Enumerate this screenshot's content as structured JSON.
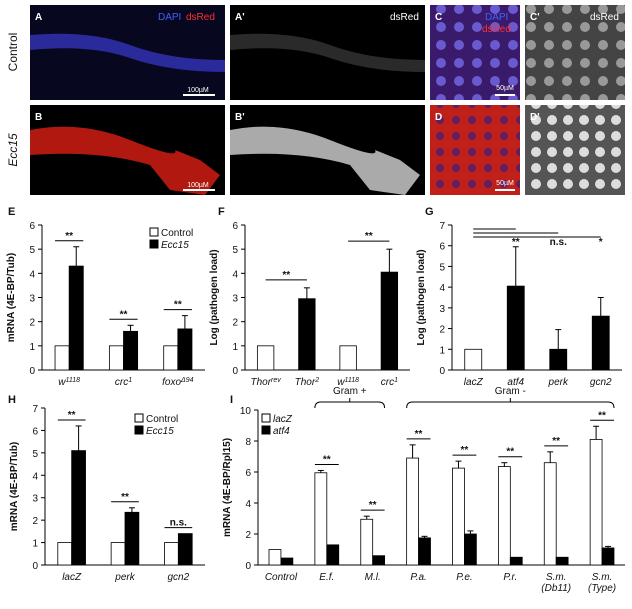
{
  "figure": {
    "row_labels": [
      "Control",
      "Ecc15"
    ],
    "images": [
      {
        "label": "A",
        "channels": [
          "DAPI",
          "dsRed"
        ],
        "scale": "100µM"
      },
      {
        "label": "A'",
        "channels": [
          "dsRed"
        ]
      },
      {
        "label": "C",
        "channels": [
          "DAPI",
          "dsRed"
        ]
      },
      {
        "label": "C'",
        "channels": [
          "dsRed"
        ]
      },
      {
        "label": "B",
        "scale": "100µM"
      },
      {
        "label": "B'"
      },
      {
        "label": "D",
        "scale": "50µM"
      },
      {
        "label": "D'"
      }
    ],
    "scale_c": "50µM"
  },
  "chart_data": [
    {
      "type": "bar",
      "panel_label": "E",
      "ylabel": "mRNA (4E-BP/Tub)",
      "ylim": [
        0,
        6
      ],
      "yticks": [
        0,
        1,
        2,
        3,
        4,
        5,
        6
      ],
      "categories": [
        "w",
        "crc",
        "foxo"
      ],
      "category_superscripts": [
        "1118",
        "1",
        "Δ94"
      ],
      "series": [
        {
          "name": "Control",
          "color": "#ffffff",
          "values": [
            1,
            1,
            1
          ],
          "errors": [
            0,
            0,
            0
          ]
        },
        {
          "name": "Ecc15",
          "color": "#000000",
          "values": [
            4.3,
            1.6,
            1.7
          ],
          "errors": [
            0.8,
            0.25,
            0.55
          ]
        }
      ],
      "significance": [
        "**",
        "**",
        "**"
      ]
    },
    {
      "type": "bar",
      "panel_label": "F",
      "ylabel": "Log (pathogen load)",
      "ylim": [
        0,
        6
      ],
      "yticks": [
        0,
        1,
        2,
        3,
        4,
        5,
        6
      ],
      "categories": [
        "Thor",
        "Thor",
        "w",
        "crc"
      ],
      "category_superscripts": [
        "rev",
        "2",
        "1118",
        "1"
      ],
      "series": [
        {
          "colors": [
            "#ffffff",
            "#000000",
            "#ffffff",
            "#000000"
          ],
          "values": [
            1,
            2.95,
            1,
            4.05
          ],
          "errors": [
            0,
            0.45,
            0,
            0.95
          ]
        }
      ],
      "brackets": [
        {
          "from": 0,
          "to": 1,
          "label": "**"
        },
        {
          "from": 2,
          "to": 3,
          "label": "**"
        }
      ]
    },
    {
      "type": "bar",
      "panel_label": "G",
      "ylabel": "Log (pathogen load)",
      "ylim": [
        0,
        7
      ],
      "yticks": [
        0,
        1,
        2,
        3,
        4,
        5,
        6,
        7
      ],
      "categories": [
        "lacZ",
        "atf4",
        "perk",
        "gcn2"
      ],
      "series": [
        {
          "colors": [
            "#ffffff",
            "#000000",
            "#000000",
            "#000000"
          ],
          "values": [
            1,
            4.05,
            1,
            2.6
          ],
          "errors": [
            0,
            1.9,
            0.95,
            0.9
          ]
        }
      ],
      "brackets": [
        {
          "from": 0,
          "to": 1,
          "label": "**"
        },
        {
          "from": 0,
          "to": 2,
          "label": "n.s."
        },
        {
          "from": 0,
          "to": 3,
          "label": "*"
        }
      ]
    },
    {
      "type": "bar",
      "panel_label": "H",
      "ylabel": "mRNA (4E-BP/Tub)",
      "ylim": [
        0,
        7
      ],
      "yticks": [
        0,
        1,
        2,
        3,
        4,
        5,
        6,
        7
      ],
      "categories": [
        "lacZ",
        "perk",
        "gcn2"
      ],
      "series": [
        {
          "name": "Control",
          "color": "#ffffff",
          "values": [
            1,
            1,
            1
          ],
          "errors": [
            0,
            0,
            0
          ]
        },
        {
          "name": "Ecc15",
          "color": "#000000",
          "values": [
            5.1,
            2.35,
            1.4
          ],
          "errors": [
            1.1,
            0.2,
            0
          ]
        }
      ],
      "significance": [
        "**",
        "**",
        "n.s."
      ]
    },
    {
      "type": "bar",
      "panel_label": "I",
      "ylabel": "mRNA (4E-BP/Rpl15)",
      "ylim": [
        0,
        10
      ],
      "yticks": [
        0,
        2,
        4,
        6,
        8,
        10
      ],
      "categories": [
        [
          "Control"
        ],
        [
          "E.f."
        ],
        [
          "M.l."
        ],
        [
          "P.a."
        ],
        [
          "P.e."
        ],
        [
          "P.r."
        ],
        [
          "S.m.",
          "(Db11)"
        ],
        [
          "S.m.",
          "(Type)"
        ]
      ],
      "series": [
        {
          "name": "lacZ",
          "color": "#ffffff",
          "values": [
            1,
            5.95,
            2.95,
            6.9,
            6.25,
            6.35,
            6.6,
            8.1
          ],
          "errors": [
            0,
            0.15,
            0.2,
            0.85,
            0.45,
            0.25,
            0.7,
            0.85
          ]
        },
        {
          "name": "atf4",
          "color": "#000000",
          "values": [
            0.45,
            1.3,
            0.6,
            1.75,
            2.0,
            0.5,
            0.5,
            1.1
          ],
          "errors": [
            0,
            0,
            0,
            0.1,
            0.2,
            0,
            0,
            0.1
          ]
        }
      ],
      "significance": [
        null,
        "**",
        "**",
        "**",
        "**",
        "**",
        "**",
        "**"
      ],
      "groups": [
        {
          "label": "Gram +",
          "from": 1,
          "to": 2
        },
        {
          "label": "Gram -",
          "from": 3,
          "to": 7
        }
      ]
    }
  ]
}
